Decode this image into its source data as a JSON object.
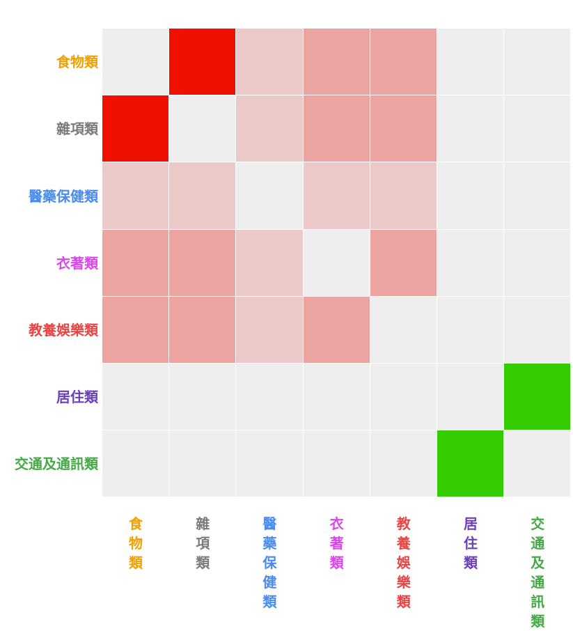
{
  "chart_data": {
    "type": "heatmap",
    "title": "",
    "xlabel": "",
    "ylabel": "",
    "categories": [
      "食物類",
      "雜項類",
      "醫藥保健類",
      "衣著類",
      "教養娛樂類",
      "居住類",
      "交通及通訊類"
    ],
    "category_colors": [
      "#f0a000",
      "#7a7a7a",
      "#4a8bef",
      "#dd44ee",
      "#e84444",
      "#6a40b8",
      "#44aa44"
    ],
    "cell_levels": {
      "background": "#eeeeee",
      "light": "#ecc9c9",
      "medium": "#eca4a0",
      "strong_red": "#ee1100",
      "strong_green": "#33cc00"
    },
    "matrix": [
      [
        "background",
        "strong_red",
        "light",
        "medium",
        "medium",
        "background",
        "background"
      ],
      [
        "strong_red",
        "background",
        "light",
        "medium",
        "medium",
        "background",
        "background"
      ],
      [
        "light",
        "light",
        "background",
        "light",
        "light",
        "background",
        "background"
      ],
      [
        "medium",
        "medium",
        "light",
        "background",
        "medium",
        "background",
        "background"
      ],
      [
        "medium",
        "medium",
        "light",
        "medium",
        "background",
        "background",
        "background"
      ],
      [
        "background",
        "background",
        "background",
        "background",
        "background",
        "background",
        "strong_green"
      ],
      [
        "background",
        "background",
        "background",
        "background",
        "background",
        "strong_green",
        "background"
      ]
    ]
  }
}
